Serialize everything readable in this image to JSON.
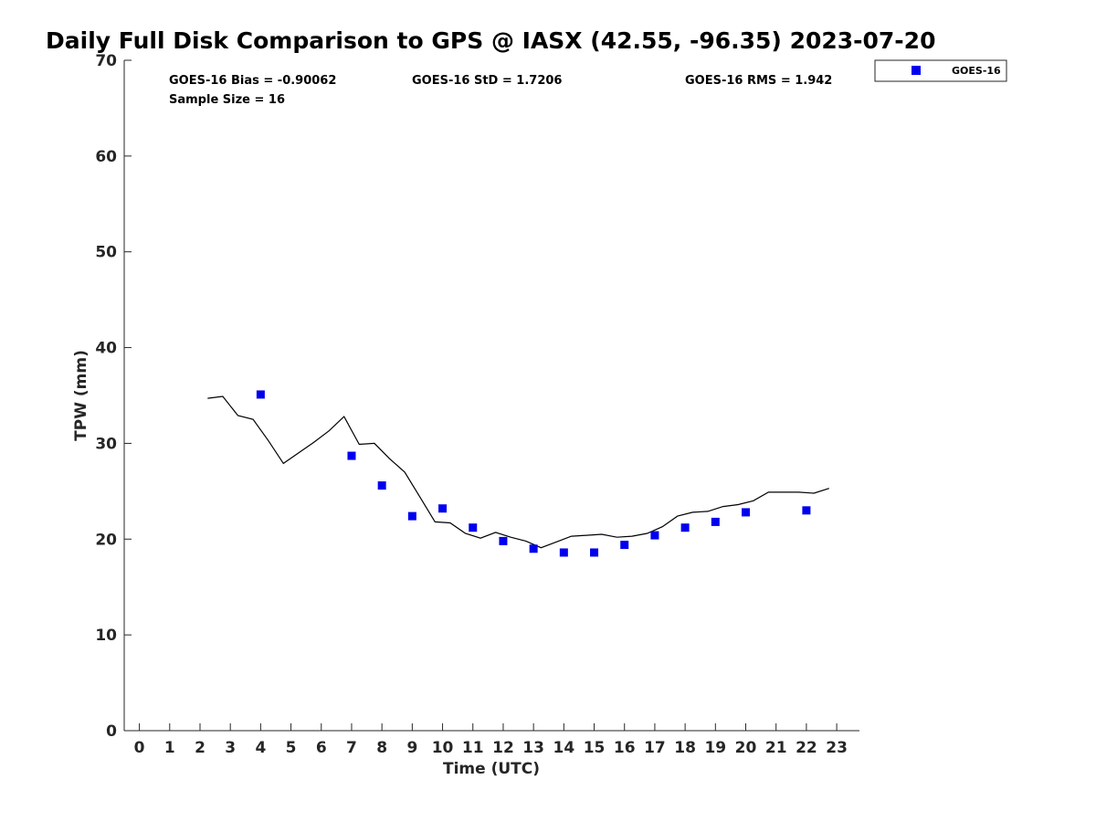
{
  "chart_data": {
    "type": "scatter",
    "title": "Daily Full Disk Comparison to GPS @ IASX (42.55, -96.35) 2023-07-20",
    "xlabel": "Time (UTC)",
    "ylabel": "TPW (mm)",
    "xlim": [
      -0.5,
      23.75
    ],
    "ylim": [
      0,
      70
    ],
    "xticks": [
      0,
      1,
      2,
      3,
      4,
      5,
      6,
      7,
      8,
      9,
      10,
      11,
      12,
      13,
      14,
      15,
      16,
      17,
      18,
      19,
      20,
      21,
      22,
      23
    ],
    "yticks": [
      0,
      10,
      20,
      30,
      40,
      50,
      60,
      70
    ],
    "grid": false,
    "legend_position": "top-right, outside plot",
    "series": [
      {
        "name": "GOES-16",
        "kind": "scatter",
        "marker": "square",
        "color": "#0000ee",
        "x": [
          4,
          7,
          8,
          9,
          10,
          11,
          12,
          13,
          14,
          15,
          16,
          17,
          18,
          19,
          20,
          22
        ],
        "y": [
          35.1,
          28.7,
          25.6,
          22.4,
          23.2,
          21.2,
          19.8,
          19.0,
          18.6,
          18.6,
          19.4,
          20.4,
          21.2,
          21.8,
          22.8,
          23.0
        ]
      },
      {
        "kind": "line",
        "color": "#000000",
        "x": [
          2.25,
          2.75,
          3.25,
          3.75,
          4.25,
          4.75,
          5.25,
          5.75,
          6.25,
          6.75,
          7.25,
          7.75,
          8.25,
          8.75,
          9.25,
          9.75,
          10.25,
          10.75,
          11.25,
          11.75,
          12.25,
          12.75,
          13.25,
          13.75,
          14.25,
          14.75,
          15.25,
          15.75,
          16.25,
          16.75,
          17.25,
          17.75,
          18.25,
          18.75,
          19.25,
          19.75,
          20.25,
          20.75,
          21.25,
          21.75,
          22.25,
          22.75
        ],
        "y": [
          34.7,
          34.9,
          32.9,
          32.5,
          30.3,
          27.9,
          29.0,
          30.1,
          31.3,
          32.8,
          29.9,
          30.0,
          28.4,
          27.0,
          24.4,
          21.8,
          21.7,
          20.6,
          20.1,
          20.7,
          20.2,
          19.8,
          19.1,
          19.7,
          20.3,
          20.4,
          20.5,
          20.2,
          20.3,
          20.6,
          21.3,
          22.4,
          22.8,
          22.9,
          23.4,
          23.6,
          24.0,
          24.9,
          24.9,
          24.9,
          24.8,
          25.3
        ]
      }
    ],
    "annotations": {
      "bias": "GOES-16 Bias = -0.90062",
      "std": "GOES-16 StD = 1.7206",
      "rms": "GOES-16 RMS = 1.942",
      "sample": "Sample Size = 16"
    },
    "legend": [
      "GOES-16"
    ]
  }
}
